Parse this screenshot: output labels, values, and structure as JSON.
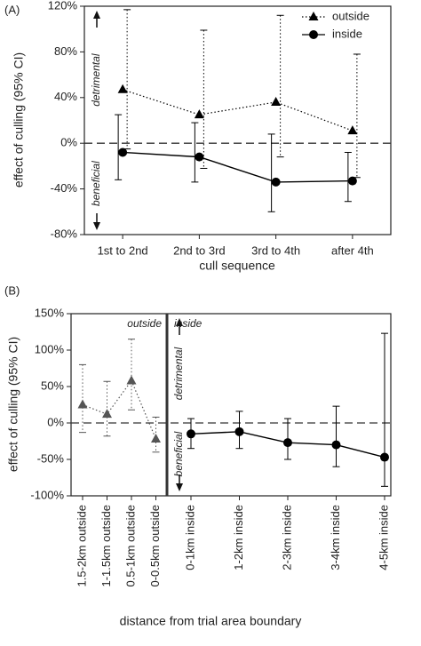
{
  "chart_data": [
    {
      "type": "line",
      "panel_label": "(A)",
      "ylabel": "effect of culling (95% CI)",
      "xlabel": "cull sequence",
      "categories": [
        "1st to 2nd",
        "2nd to 3rd",
        "3rd to 4th",
        "after 4th"
      ],
      "ylim": [
        -80,
        120
      ],
      "yticks": [
        {
          "value": -80,
          "label": "-80%"
        },
        {
          "value": -40,
          "label": "-40%"
        },
        {
          "value": 0,
          "label": "0%"
        },
        {
          "value": 40,
          "label": "40%"
        },
        {
          "value": 80,
          "label": "80%"
        },
        {
          "value": 120,
          "label": "120%"
        }
      ],
      "reference_line": 0,
      "legend": "upper right",
      "annotations": [
        "detrimental",
        "beneficial"
      ],
      "series": [
        {
          "name": "outside",
          "color": "#000000",
          "marker": "triangle",
          "dash": "dotted",
          "values": [
            47,
            25,
            36,
            11
          ],
          "upper": [
            117,
            99,
            112,
            78
          ],
          "lower": [
            -5,
            -22,
            -12,
            -30
          ]
        },
        {
          "name": "inside",
          "color": "#000000",
          "marker": "circle",
          "dash": "solid",
          "values": [
            -8,
            -12,
            -34,
            -33
          ],
          "upper": [
            25,
            18,
            8,
            -8
          ],
          "lower": [
            -32,
            -34,
            -60,
            -51
          ]
        }
      ]
    },
    {
      "type": "line",
      "panel_label": "(B)",
      "ylabel": "effect of culling (95% CI)",
      "xlabel": "distance from trial area boundary",
      "categories": [
        "1.5-2km outside",
        "1-1.5km outside",
        "0.5-1km outside",
        "0-0.5km outside",
        "0-1km inside",
        "1-2km inside",
        "2-3km inside",
        "3-4km inside",
        "4-5km inside"
      ],
      "ylim": [
        -100,
        150
      ],
      "yticks": [
        {
          "value": -100,
          "label": "-100%"
        },
        {
          "value": -50,
          "label": "-50%"
        },
        {
          "value": 0,
          "label": "0%"
        },
        {
          "value": 50,
          "label": "50%"
        },
        {
          "value": 100,
          "label": "100%"
        },
        {
          "value": 150,
          "label": "150%"
        }
      ],
      "reference_line": 0,
      "divider": true,
      "annotations": [
        "detrimental",
        "beneficial"
      ],
      "series": [
        {
          "name": "outside",
          "color": "#555555",
          "marker": "triangle",
          "dash": "dotted",
          "values": [
            25,
            12,
            58,
            -22,
            null,
            null,
            null,
            null,
            null
          ],
          "upper": [
            80,
            57,
            115,
            8,
            null,
            null,
            null,
            null,
            null
          ],
          "lower": [
            -13,
            -18,
            18,
            -40,
            null,
            null,
            null,
            null,
            null
          ]
        },
        {
          "name": "inside",
          "color": "#000000",
          "marker": "circle",
          "dash": "solid",
          "values": [
            null,
            null,
            null,
            null,
            -15,
            -12,
            -27,
            -30,
            -47
          ],
          "upper": [
            null,
            null,
            null,
            null,
            6,
            16,
            6,
            23,
            123
          ],
          "lower": [
            null,
            null,
            null,
            null,
            -35,
            -35,
            -50,
            -60,
            -87
          ]
        }
      ]
    }
  ]
}
